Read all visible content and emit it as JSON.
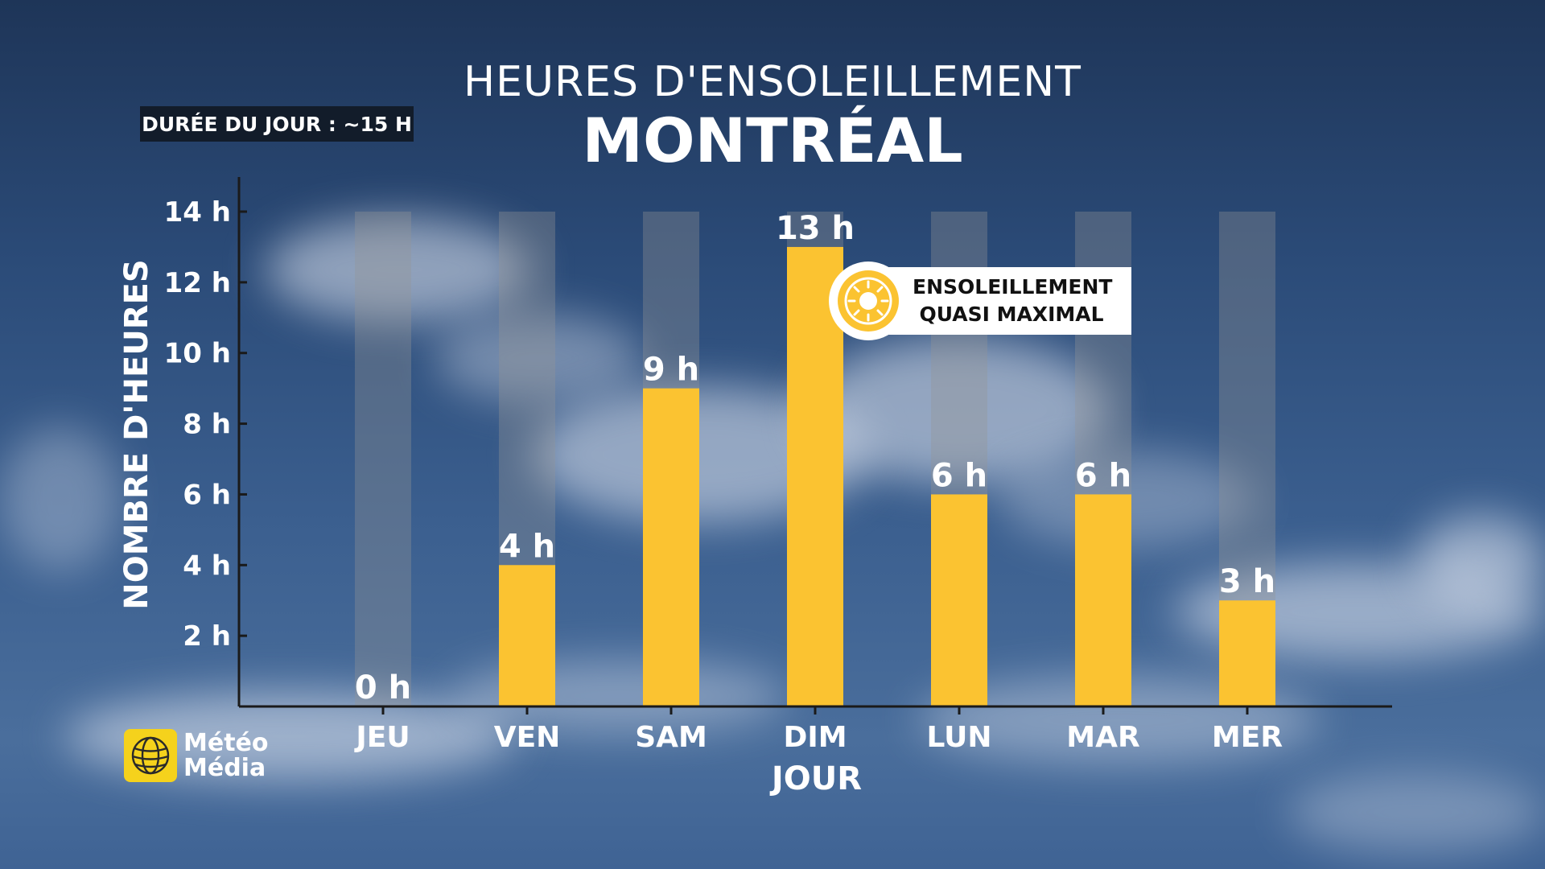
{
  "title": {
    "line1": "HEURES D'ENSOLEILLEMENT",
    "line2": "MONTRÉAL"
  },
  "day_length_badge": "DURÉE DU JOUR : ~15 H",
  "callout": {
    "line1": "ENSOLEILLEMENT",
    "line2": "QUASI MAXIMAL",
    "icon": "sun-icon"
  },
  "logo": {
    "line1": "Météo",
    "line2": "Média",
    "icon": "globe-icon"
  },
  "colors": {
    "bar": "#fbc331",
    "track": "rgba(150,150,150,0.35)",
    "axis": "#1a1a1a",
    "text": "#ffffff"
  },
  "chart_data": {
    "type": "bar",
    "title": "HEURES D'ENSOLEILLEMENT MONTRÉAL",
    "xlabel": "JOUR",
    "ylabel": "NOMBRE D'HEURES",
    "categories": [
      "JEU",
      "VEN",
      "SAM",
      "DIM",
      "LUN",
      "MAR",
      "MER"
    ],
    "values": [
      0,
      4,
      9,
      13,
      6,
      6,
      3
    ],
    "value_labels": [
      "0 h",
      "4 h",
      "9 h",
      "13 h",
      "6 h",
      "6 h",
      "3 h"
    ],
    "max_possible": 14,
    "ylim": [
      0,
      14
    ],
    "y_ticks": [
      2,
      4,
      6,
      8,
      10,
      12,
      14
    ],
    "y_tick_labels": [
      "2 h",
      "4 h",
      "6 h",
      "8 h",
      "10 h",
      "12 h",
      "14 h"
    ],
    "grid": false
  }
}
